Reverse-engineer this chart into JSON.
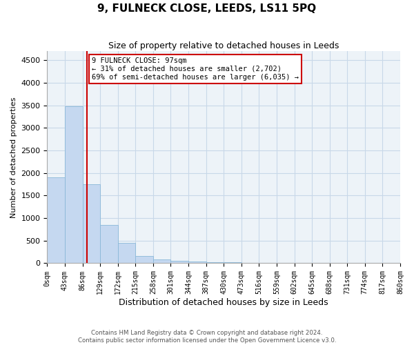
{
  "title": "9, FULNECK CLOSE, LEEDS, LS11 5PQ",
  "subtitle": "Size of property relative to detached houses in Leeds",
  "xlabel": "Distribution of detached houses by size in Leeds",
  "ylabel": "Number of detached properties",
  "bar_color": "#c5d8f0",
  "bar_edge_color": "#8ab8d8",
  "bin_edges": [
    0,
    43,
    86,
    129,
    172,
    215,
    258,
    301,
    344,
    387,
    430,
    473,
    516,
    559,
    602,
    645,
    688,
    731,
    774,
    817,
    860
  ],
  "bar_heights": [
    1900,
    3475,
    1755,
    855,
    450,
    155,
    90,
    55,
    35,
    22,
    15,
    10,
    8,
    5,
    4,
    3,
    2,
    2,
    1,
    1
  ],
  "property_size": 97,
  "vline_color": "#cc0000",
  "annotation_text": "9 FULNECK CLOSE: 97sqm\n← 31% of detached houses are smaller (2,702)\n69% of semi-detached houses are larger (6,035) →",
  "annotation_box_color": "#cc0000",
  "ylim": [
    0,
    4700
  ],
  "yticks": [
    0,
    500,
    1000,
    1500,
    2000,
    2500,
    3000,
    3500,
    4000,
    4500
  ],
  "tick_labels": [
    "0sqm",
    "43sqm",
    "86sqm",
    "129sqm",
    "172sqm",
    "215sqm",
    "258sqm",
    "301sqm",
    "344sqm",
    "387sqm",
    "430sqm",
    "473sqm",
    "516sqm",
    "559sqm",
    "602sqm",
    "645sqm",
    "688sqm",
    "731sqm",
    "774sqm",
    "817sqm",
    "860sqm"
  ],
  "background_color": "#ffffff",
  "grid_color": "#c8d8e8",
  "footer_line1": "Contains HM Land Registry data © Crown copyright and database right 2024.",
  "footer_line2": "Contains public sector information licensed under the Open Government Licence v3.0."
}
